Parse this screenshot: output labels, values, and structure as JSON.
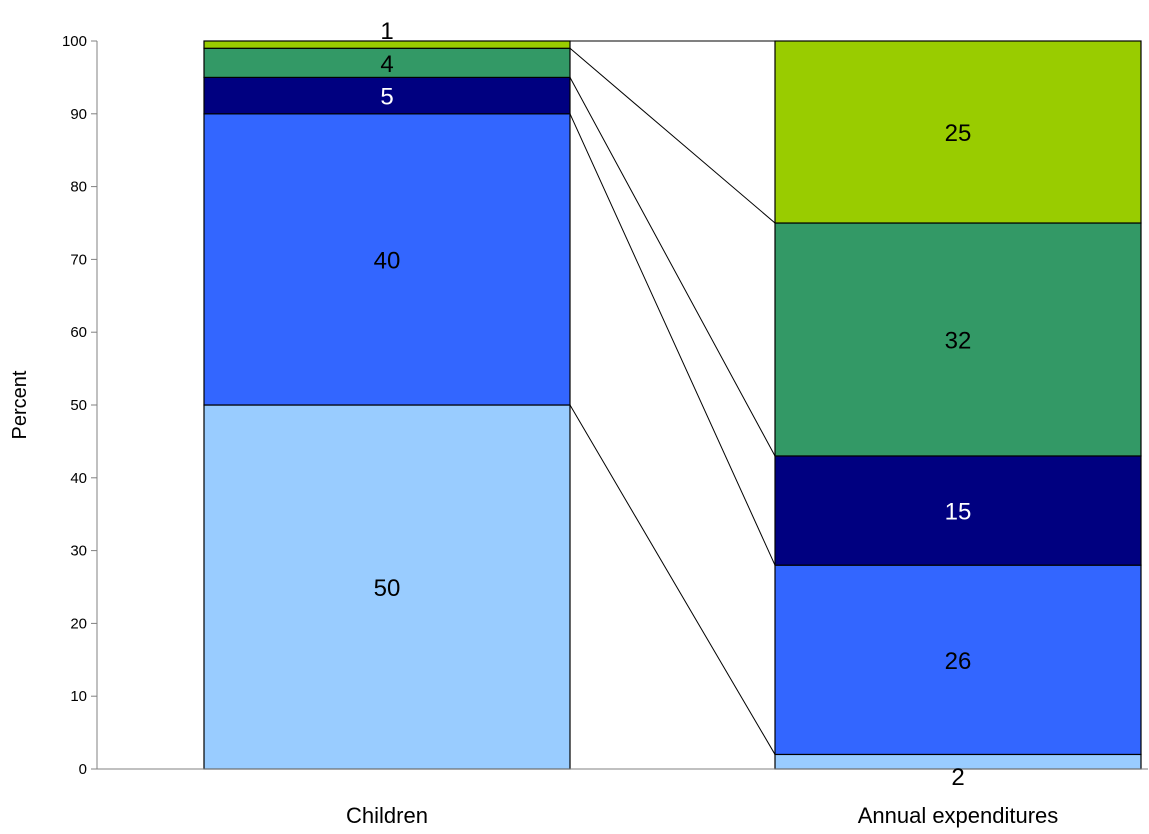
{
  "chart_data": {
    "type": "bar",
    "stacked": true,
    "title": "",
    "xlabel": "",
    "ylabel": "Percent",
    "ylim": [
      0,
      100
    ],
    "yticks": [
      0,
      10,
      20,
      30,
      40,
      50,
      60,
      70,
      80,
      90,
      100
    ],
    "categories": [
      "Children",
      "Annual expenditures"
    ],
    "series": [
      {
        "color": "#99ccff",
        "values": [
          50,
          2
        ]
      },
      {
        "color": "#3366ff",
        "values": [
          40,
          26
        ]
      },
      {
        "color": "#000080",
        "values": [
          5,
          15
        ]
      },
      {
        "color": "#339966",
        "values": [
          4,
          32
        ]
      },
      {
        "color": "#99cc00",
        "values": [
          1,
          25
        ]
      }
    ],
    "connector_lines": true,
    "grid": false,
    "legend": "none"
  }
}
